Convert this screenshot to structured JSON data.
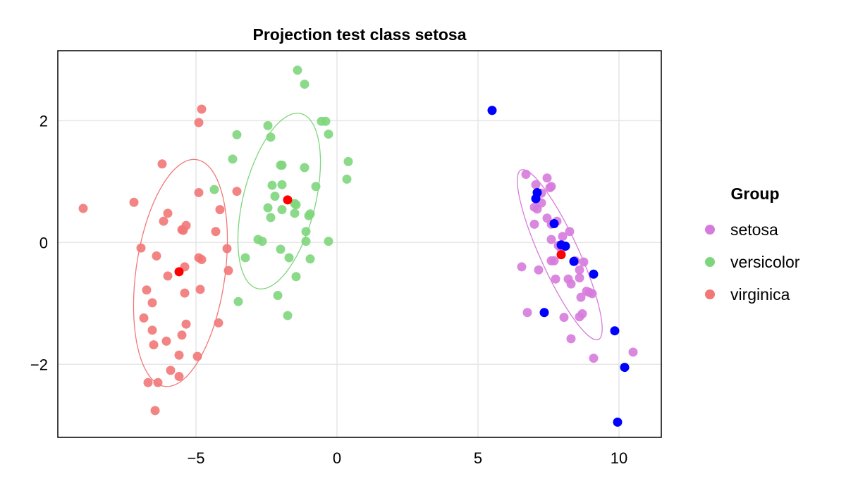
{
  "chart_data": {
    "type": "scatter",
    "title": "Projection test class setosa",
    "xlabel": "",
    "ylabel": "",
    "xlim": [
      -9.9,
      11.5
    ],
    "ylim": [
      -3.2,
      3.15
    ],
    "x_ticks": [
      -5,
      0,
      5,
      10
    ],
    "y_ticks": [
      -2,
      0,
      2
    ],
    "x_tick_labels": [
      "−5",
      "0",
      "5",
      "10"
    ],
    "y_tick_labels": [
      "−2",
      "0",
      "2"
    ],
    "grid": true,
    "legend": {
      "title": "Group",
      "position": "right"
    },
    "series": [
      {
        "name": "setosa",
        "color": "#d67bdb",
        "ellipse": {
          "cx": 7.9,
          "cy": -0.2,
          "rx": 0.68,
          "ry": 1.53,
          "angle_deg": -24.5
        },
        "points": [
          [
            6.7,
            1.12
          ],
          [
            7.45,
            1.06
          ],
          [
            7.6,
            0.92
          ],
          [
            7.05,
            0.95
          ],
          [
            7.25,
            0.81
          ],
          [
            7.55,
            0.9
          ],
          [
            7.1,
            0.55
          ],
          [
            7.0,
            0.58
          ],
          [
            7.25,
            0.65
          ],
          [
            7.45,
            0.4
          ],
          [
            7.0,
            0.3
          ],
          [
            7.6,
            0.3
          ],
          [
            7.8,
            0.35
          ],
          [
            8.0,
            0.1
          ],
          [
            8.25,
            0.18
          ],
          [
            7.6,
            0.05
          ],
          [
            7.85,
            -0.05
          ],
          [
            7.95,
            -0.1
          ],
          [
            8.45,
            -0.3
          ],
          [
            8.6,
            -0.45
          ],
          [
            7.7,
            -0.3
          ],
          [
            7.6,
            -0.3
          ],
          [
            8.75,
            -0.32
          ],
          [
            6.55,
            -0.4
          ],
          [
            7.15,
            -0.45
          ],
          [
            7.75,
            -0.6
          ],
          [
            8.2,
            -0.6
          ],
          [
            8.3,
            -0.68
          ],
          [
            8.6,
            -0.58
          ],
          [
            8.85,
            -0.8
          ],
          [
            8.95,
            -0.82
          ],
          [
            9.05,
            -0.84
          ],
          [
            8.65,
            -0.9
          ],
          [
            6.75,
            -1.15
          ],
          [
            8.6,
            -1.22
          ],
          [
            8.05,
            -1.23
          ],
          [
            8.7,
            -1.17
          ],
          [
            8.3,
            -1.58
          ],
          [
            9.1,
            -1.9
          ],
          [
            10.5,
            -1.8
          ]
        ]
      },
      {
        "name": "versicolor",
        "color": "#7ed67c",
        "ellipse": {
          "cx": -2.05,
          "cy": 0.68,
          "rx": 1.28,
          "ry": 1.48,
          "angle_deg": 14
        },
        "points": [
          [
            -1.4,
            2.83
          ],
          [
            -1.15,
            2.6
          ],
          [
            -0.55,
            1.99
          ],
          [
            -0.4,
            1.99
          ],
          [
            -0.3,
            1.78
          ],
          [
            -2.45,
            1.92
          ],
          [
            -3.55,
            1.77
          ],
          [
            -2.35,
            1.73
          ],
          [
            -3.7,
            1.37
          ],
          [
            0.4,
            1.33
          ],
          [
            -2.0,
            1.27
          ],
          [
            -1.95,
            1.27
          ],
          [
            -1.15,
            1.23
          ],
          [
            0.35,
            1.04
          ],
          [
            -2.3,
            0.94
          ],
          [
            -1.95,
            0.95
          ],
          [
            -0.75,
            0.92
          ],
          [
            -4.35,
            0.87
          ],
          [
            -2.2,
            0.76
          ],
          [
            -1.5,
            0.64
          ],
          [
            -1.45,
            0.62
          ],
          [
            -2.45,
            0.57
          ],
          [
            -1.95,
            0.54
          ],
          [
            -2.35,
            0.41
          ],
          [
            -1.5,
            0.48
          ],
          [
            -0.95,
            0.47
          ],
          [
            -1.0,
            0.44
          ],
          [
            -1.1,
            0.18
          ],
          [
            -2.8,
            0.05
          ],
          [
            -2.65,
            0.02
          ],
          [
            -1.1,
            0.02
          ],
          [
            -0.3,
            0.02
          ],
          [
            -2.0,
            -0.11
          ],
          [
            -3.25,
            -0.25
          ],
          [
            -1.7,
            -0.25
          ],
          [
            -0.95,
            -0.27
          ],
          [
            -1.45,
            -0.56
          ],
          [
            -3.5,
            -0.97
          ],
          [
            -2.1,
            -0.87
          ],
          [
            -1.75,
            -1.2
          ]
        ]
      },
      {
        "name": "virginica",
        "color": "#f27777",
        "ellipse": {
          "cx": -5.55,
          "cy": -0.5,
          "rx": 1.58,
          "ry": 1.88,
          "angle_deg": 8
        },
        "points": [
          [
            -4.8,
            2.19
          ],
          [
            -4.9,
            1.97
          ],
          [
            -9.0,
            0.56
          ],
          [
            -7.2,
            0.66
          ],
          [
            -6.2,
            1.29
          ],
          [
            -3.55,
            0.84
          ],
          [
            -4.9,
            0.82
          ],
          [
            -6.0,
            0.48
          ],
          [
            -4.15,
            0.54
          ],
          [
            -5.35,
            0.28
          ],
          [
            -6.15,
            0.35
          ],
          [
            -5.45,
            0.2
          ],
          [
            -5.5,
            0.21
          ],
          [
            -4.3,
            0.18
          ],
          [
            -6.95,
            -0.09
          ],
          [
            -3.9,
            -0.1
          ],
          [
            -6.4,
            -0.22
          ],
          [
            -4.9,
            -0.25
          ],
          [
            -4.8,
            -0.28
          ],
          [
            -5.4,
            -0.4
          ],
          [
            -3.85,
            -0.46
          ],
          [
            -6.0,
            -0.55
          ],
          [
            -6.75,
            -0.78
          ],
          [
            -4.85,
            -0.77
          ],
          [
            -5.4,
            -0.83
          ],
          [
            -6.55,
            -0.99
          ],
          [
            -6.85,
            -1.24
          ],
          [
            -4.2,
            -1.32
          ],
          [
            -5.35,
            -1.34
          ],
          [
            -6.55,
            -1.44
          ],
          [
            -5.5,
            -1.52
          ],
          [
            -6.05,
            -1.62
          ],
          [
            -6.5,
            -1.68
          ],
          [
            -5.6,
            -1.85
          ],
          [
            -4.95,
            -1.87
          ],
          [
            -5.9,
            -2.1
          ],
          [
            -5.6,
            -2.2
          ],
          [
            -6.7,
            -2.3
          ],
          [
            -6.35,
            -2.3
          ],
          [
            -6.45,
            -2.76
          ]
        ]
      },
      {
        "name": "",
        "color": "#ff0000",
        "legend": false,
        "points": [
          [
            -5.6,
            -0.48
          ],
          [
            -1.75,
            0.7
          ],
          [
            7.95,
            -0.2
          ]
        ]
      },
      {
        "name": "",
        "color": "#0000ff",
        "legend": false,
        "points": [
          [
            5.5,
            2.17
          ],
          [
            7.1,
            0.82
          ],
          [
            7.05,
            0.72
          ],
          [
            7.7,
            0.31
          ],
          [
            7.95,
            -0.04
          ],
          [
            8.1,
            -0.06
          ],
          [
            8.4,
            -0.31
          ],
          [
            9.1,
            -0.52
          ],
          [
            7.35,
            -1.15
          ],
          [
            9.85,
            -1.45
          ],
          [
            10.2,
            -2.05
          ],
          [
            9.95,
            -2.95
          ]
        ]
      }
    ]
  }
}
